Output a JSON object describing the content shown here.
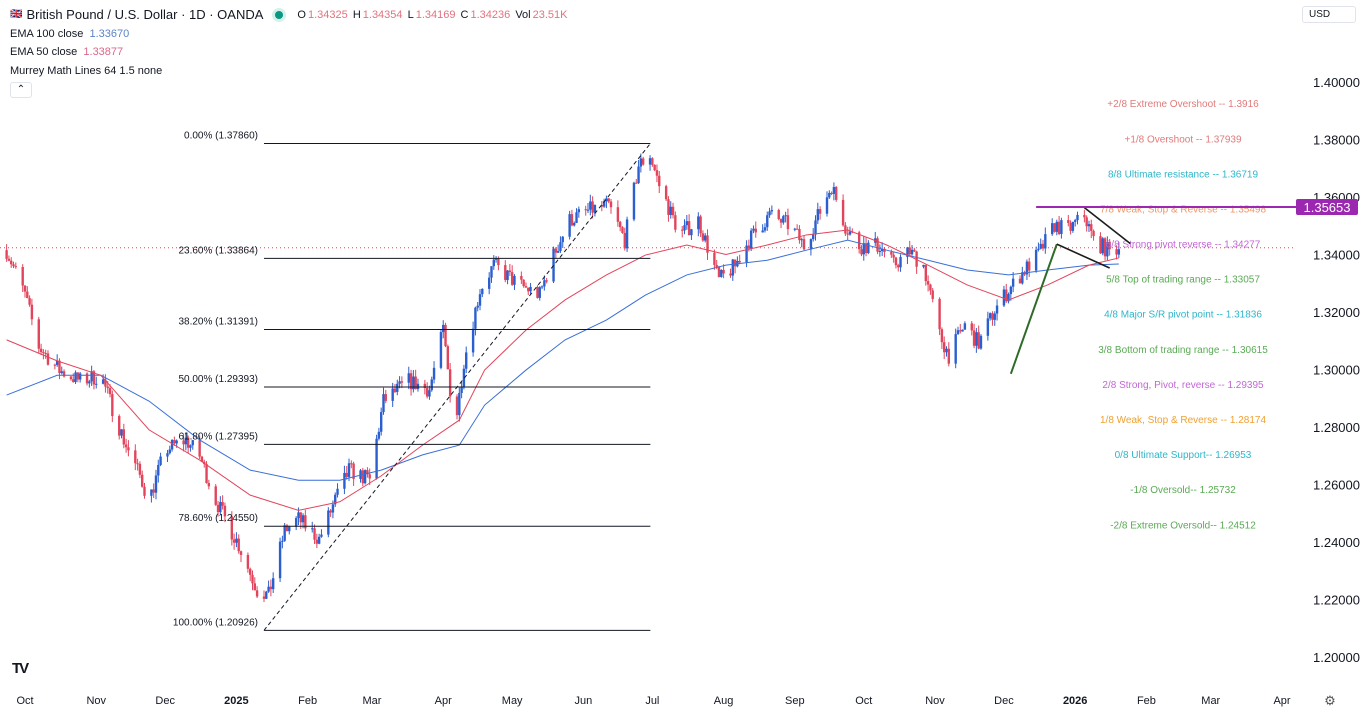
{
  "header": {
    "symbol_title": "British Pound / U.S. Dollar · 1D · OANDA",
    "o_label": "O",
    "o": "1.34325",
    "h_label": "H",
    "h": "1.34354",
    "l_label": "L",
    "l": "1.34169",
    "c_label": "C",
    "c": "1.34236",
    "vol_label": "Vol",
    "vol": "23.51K"
  },
  "indicators": [
    {
      "label": "EMA 100 close",
      "value": "1.33670"
    },
    {
      "label": "EMA 50 close",
      "value": "1.33877"
    },
    {
      "label": "Murrey Math Lines 64 1.5 none",
      "value": ""
    }
  ],
  "collapse_icon": "chevron-up-icon",
  "currency": "USD",
  "logo": "TV",
  "settings_icon": "gear-icon",
  "colors": {
    "up": "#2b5fcf",
    "down": "#e2455b",
    "ema50": "#e2455b",
    "ema100": "#3a6fd8",
    "highlight": "#9c27b0",
    "fib": "#131722",
    "trend": "#2e6b2a"
  },
  "chart_data": {
    "type": "candlestick",
    "title": "British Pound / U.S. Dollar · 1D · OANDA",
    "ylim": [
      1.19,
      1.415
    ],
    "y_ticks": [
      "1.40000",
      "1.38000",
      "1.36000",
      "1.34000",
      "1.32000",
      "1.30000",
      "1.28000",
      "1.26000",
      "1.24000",
      "1.22000",
      "1.20000"
    ],
    "x_ticks": [
      {
        "label": "Oct",
        "date": "2024-10-01"
      },
      {
        "label": "Nov",
        "date": "2024-11-01"
      },
      {
        "label": "Dec",
        "date": "2024-12-01"
      },
      {
        "label": "2025",
        "date": "2025-01-01",
        "bold": true
      },
      {
        "label": "Feb",
        "date": "2025-02-01"
      },
      {
        "label": "Mar",
        "date": "2025-03-01"
      },
      {
        "label": "Apr",
        "date": "2025-04-01"
      },
      {
        "label": "May",
        "date": "2025-05-01"
      },
      {
        "label": "Jun",
        "date": "2025-06-01"
      },
      {
        "label": "Jul",
        "date": "2025-07-01"
      },
      {
        "label": "Aug",
        "date": "2025-08-01"
      },
      {
        "label": "Sep",
        "date": "2025-09-01"
      },
      {
        "label": "Oct",
        "date": "2025-10-01"
      },
      {
        "label": "Nov",
        "date": "2025-11-01"
      },
      {
        "label": "Dec",
        "date": "2025-12-01"
      },
      {
        "label": "2026",
        "date": "2026-01-01",
        "bold": true
      },
      {
        "label": "Feb",
        "date": "2026-02-01"
      },
      {
        "label": "Mar",
        "date": "2026-03-01"
      },
      {
        "label": "Apr",
        "date": "2026-04-01"
      }
    ],
    "close_path": [
      [
        "2024-09-23",
        1.3415
      ],
      [
        "2024-10-01",
        1.326
      ],
      [
        "2024-10-07",
        1.308
      ],
      [
        "2024-10-16",
        1.2997
      ],
      [
        "2024-10-25",
        1.296
      ],
      [
        "2024-11-03",
        1.298
      ],
      [
        "2024-11-07",
        1.289
      ],
      [
        "2024-11-13",
        1.2755
      ],
      [
        "2024-11-20",
        1.263
      ],
      [
        "2024-11-24",
        1.2545
      ],
      [
        "2024-12-01",
        1.272
      ],
      [
        "2024-12-10",
        1.2755
      ],
      [
        "2024-12-16",
        1.27
      ],
      [
        "2024-12-23",
        1.2545
      ],
      [
        "2025-01-02",
        1.239
      ],
      [
        "2025-01-10",
        1.2233
      ],
      [
        "2025-01-15",
        1.2215
      ],
      [
        "2025-01-22",
        1.244
      ],
      [
        "2025-01-28",
        1.248
      ],
      [
        "2025-02-06",
        1.241
      ],
      [
        "2025-02-13",
        1.2545
      ],
      [
        "2025-02-19",
        1.265
      ],
      [
        "2025-02-28",
        1.2615
      ],
      [
        "2025-03-06",
        1.289
      ],
      [
        "2025-03-17",
        1.296
      ],
      [
        "2025-03-26",
        1.293
      ],
      [
        "2025-04-01",
        1.3137
      ],
      [
        "2025-04-06",
        1.279
      ],
      [
        "2025-04-10",
        1.303
      ],
      [
        "2025-04-17",
        1.3277
      ],
      [
        "2025-04-23",
        1.3363
      ],
      [
        "2025-05-04",
        1.3294
      ],
      [
        "2025-05-13",
        1.326
      ],
      [
        "2025-05-19",
        1.3398
      ],
      [
        "2025-05-26",
        1.352
      ],
      [
        "2025-06-04",
        1.3555
      ],
      [
        "2025-06-12",
        1.357
      ],
      [
        "2025-06-19",
        1.345
      ],
      [
        "2025-06-25",
        1.371
      ],
      [
        "2025-06-30",
        1.3746
      ],
      [
        "2025-07-04",
        1.364
      ],
      [
        "2025-07-13",
        1.347
      ],
      [
        "2025-07-21",
        1.352
      ],
      [
        "2025-07-30",
        1.331
      ],
      [
        "2025-08-06",
        1.336
      ],
      [
        "2025-08-12",
        1.345
      ],
      [
        "2025-08-21",
        1.3537
      ],
      [
        "2025-08-30",
        1.35
      ],
      [
        "2025-09-05",
        1.343
      ],
      [
        "2025-09-12",
        1.355
      ],
      [
        "2025-09-17",
        1.364
      ],
      [
        "2025-09-23",
        1.35
      ],
      [
        "2025-09-29",
        1.343
      ],
      [
        "2025-10-08",
        1.343
      ],
      [
        "2025-10-14",
        1.3363
      ],
      [
        "2025-10-21",
        1.341
      ],
      [
        "2025-10-27",
        1.3363
      ],
      [
        "2025-11-03",
        1.312
      ],
      [
        "2025-11-07",
        1.305
      ],
      [
        "2025-11-14",
        1.3155
      ],
      [
        "2025-11-20",
        1.309
      ],
      [
        "2025-11-27",
        1.3207
      ],
      [
        "2025-12-03",
        1.3277
      ],
      [
        "2025-12-10",
        1.3346
      ],
      [
        "2025-12-16",
        1.34
      ],
      [
        "2025-12-23",
        1.3502
      ],
      [
        "2025-12-29",
        1.3485
      ],
      [
        "2026-01-05",
        1.3537
      ],
      [
        "2026-01-09",
        1.345
      ],
      [
        "2026-01-16",
        1.341
      ],
      [
        "2026-01-20",
        1.34236
      ]
    ],
    "ema50": [
      [
        "2024-09-23",
        1.3103
      ],
      [
        "2024-10-15",
        1.303
      ],
      [
        "2024-11-03",
        1.298
      ],
      [
        "2024-11-24",
        1.279
      ],
      [
        "2024-12-16",
        1.2685
      ],
      [
        "2025-01-07",
        1.2563
      ],
      [
        "2025-01-28",
        1.251
      ],
      [
        "2025-02-15",
        1.254
      ],
      [
        "2025-03-05",
        1.263
      ],
      [
        "2025-03-23",
        1.2737
      ],
      [
        "2025-04-08",
        1.2824
      ],
      [
        "2025-04-19",
        1.2998
      ],
      [
        "2025-05-07",
        1.3137
      ],
      [
        "2025-05-24",
        1.3242
      ],
      [
        "2025-06-11",
        1.3329
      ],
      [
        "2025-06-28",
        1.3398
      ],
      [
        "2025-07-16",
        1.3433
      ],
      [
        "2025-08-02",
        1.34
      ],
      [
        "2025-08-20",
        1.3433
      ],
      [
        "2025-09-06",
        1.3468
      ],
      [
        "2025-09-24",
        1.3485
      ],
      [
        "2025-10-11",
        1.3433
      ],
      [
        "2025-10-29",
        1.3363
      ],
      [
        "2025-11-15",
        1.3294
      ],
      [
        "2025-12-03",
        1.3242
      ],
      [
        "2025-12-20",
        1.3294
      ],
      [
        "2026-01-07",
        1.3363
      ],
      [
        "2026-01-20",
        1.3388
      ]
    ],
    "ema100": [
      [
        "2024-09-23",
        1.2911
      ],
      [
        "2024-10-15",
        1.298
      ],
      [
        "2024-11-03",
        1.298
      ],
      [
        "2024-11-24",
        1.289
      ],
      [
        "2024-12-16",
        1.2755
      ],
      [
        "2025-01-07",
        1.265
      ],
      [
        "2025-01-28",
        1.2615
      ],
      [
        "2025-02-15",
        1.2615
      ],
      [
        "2025-03-05",
        1.265
      ],
      [
        "2025-03-23",
        1.2703
      ],
      [
        "2025-04-08",
        1.2737
      ],
      [
        "2025-04-19",
        1.2876
      ],
      [
        "2025-05-07",
        1.2998
      ],
      [
        "2025-05-24",
        1.3103
      ],
      [
        "2025-06-11",
        1.3172
      ],
      [
        "2025-06-28",
        1.3259
      ],
      [
        "2025-07-16",
        1.3329
      ],
      [
        "2025-08-02",
        1.3363
      ],
      [
        "2025-08-20",
        1.338
      ],
      [
        "2025-09-06",
        1.3415
      ],
      [
        "2025-09-24",
        1.345
      ],
      [
        "2025-10-11",
        1.3415
      ],
      [
        "2025-10-29",
        1.338
      ],
      [
        "2025-11-15",
        1.3346
      ],
      [
        "2025-12-03",
        1.3329
      ],
      [
        "2025-12-20",
        1.3346
      ],
      [
        "2026-01-07",
        1.3363
      ],
      [
        "2026-01-20",
        1.3367
      ]
    ],
    "fibonacci": {
      "from_date": "2025-01-13",
      "to_date": "2025-07-01",
      "end_date": "2025-07-01",
      "levels": [
        {
          "label": "0.00% (1.37860)",
          "price": 1.3786
        },
        {
          "label": "23.60% (1.33864)",
          "price": 1.33864
        },
        {
          "label": "38.20% (1.31391)",
          "price": 1.31391
        },
        {
          "label": "50.00% (1.29393)",
          "price": 1.29393
        },
        {
          "label": "61.80% (1.27395)",
          "price": 1.27395
        },
        {
          "label": "78.60% (1.24550)",
          "price": 1.2455
        },
        {
          "label": "100.00% (1.20926)",
          "price": 1.20926
        }
      ]
    },
    "murrey": [
      {
        "label": "+2/8 Extreme Overshoot --  1.3916",
        "price": 1.3916,
        "color": "#e07a7a"
      },
      {
        "label": "+1/8 Overshoot --  1.37939",
        "price": 1.37939,
        "color": "#e07a7a"
      },
      {
        "label": "8/8 Ultimate resistance --  1.36719",
        "price": 1.36719,
        "color": "#2fb6c9"
      },
      {
        "label": "7/8 Weak, Stop & Reverse --  1.35498",
        "price": 1.35498,
        "color": "#f0956a"
      },
      {
        "label": "6/8 Strong pivot reverse --  1.34277",
        "price": 1.34277,
        "color": "#c266d6"
      },
      {
        "label": "5/8 Top of trading range --  1.33057",
        "price": 1.33057,
        "color": "#5aaa55"
      },
      {
        "label": "4/8 Major S/R pivot point --  1.31836",
        "price": 1.31836,
        "color": "#2fb6c9"
      },
      {
        "label": "3/8 Bottom of trading range --  1.30615",
        "price": 1.30615,
        "color": "#5aaa55"
      },
      {
        "label": "2/8 Strong, Pivot, reverse --  1.29395",
        "price": 1.29395,
        "color": "#c266d6"
      },
      {
        "label": "1/8 Weak, Stop & Reverse --  1.28174",
        "price": 1.28174,
        "color": "#f0a030"
      },
      {
        "label": "0/8 Ultimate Support--  1.26953",
        "price": 1.26953,
        "color": "#2fb6c9"
      },
      {
        "label": "-1/8 Oversold--  1.25732",
        "price": 1.25732,
        "color": "#5aaa55"
      },
      {
        "label": "-2/8 Extreme Oversold--  1.24512",
        "price": 1.24512,
        "color": "#5aaa55"
      }
    ],
    "horizontal_line": {
      "price": 1.35653,
      "label": "1.35653",
      "from_date": "2025-12-15"
    },
    "current_price": 1.34236,
    "wedge": {
      "support": [
        [
          "2025-12-04",
          1.2985
        ],
        [
          "2025-12-24",
          1.3436
        ]
      ],
      "lower": [
        [
          "2025-12-24",
          1.3436
        ],
        [
          "2026-01-16",
          1.3353
        ]
      ],
      "upper": [
        [
          "2026-01-05",
          1.3563
        ],
        [
          "2026-01-25",
          1.3438
        ]
      ]
    }
  }
}
